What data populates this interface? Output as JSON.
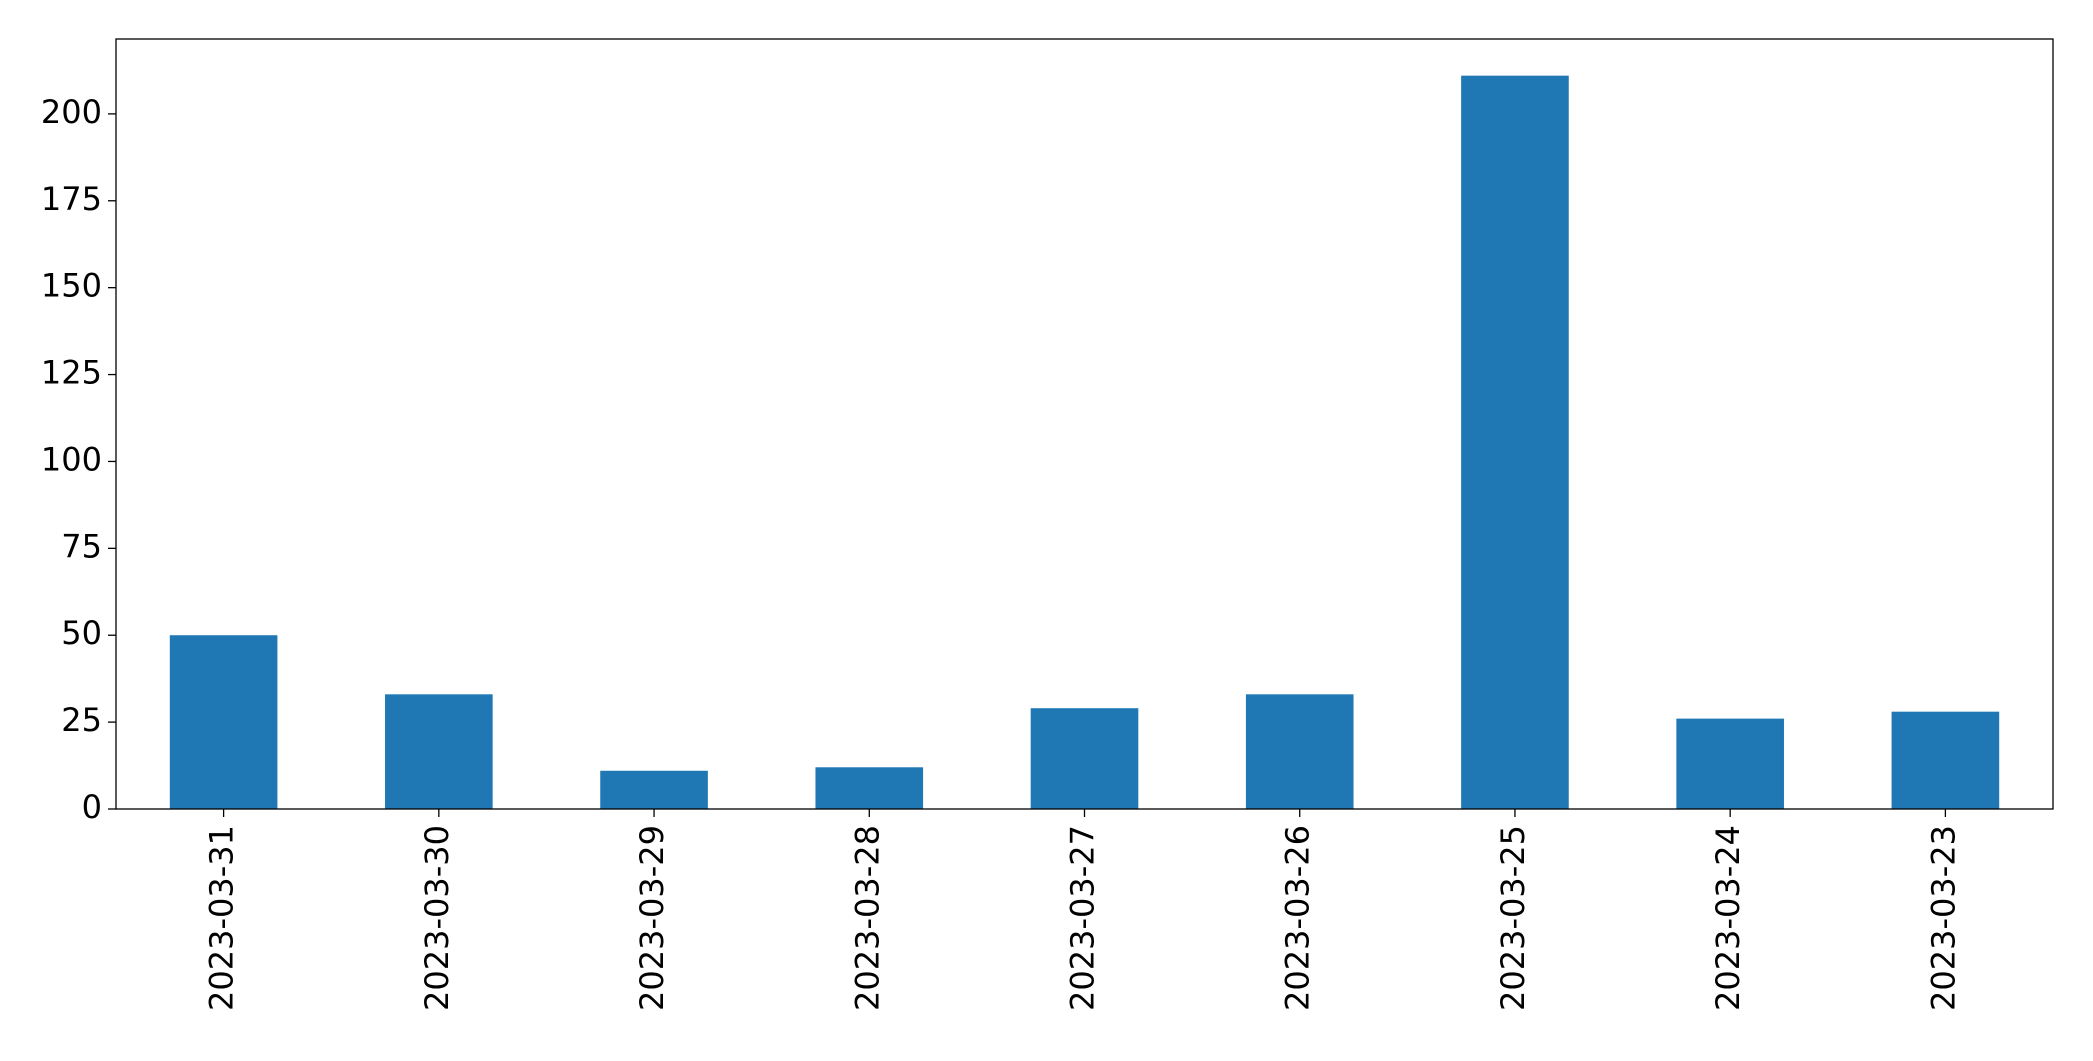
{
  "chart_data": {
    "type": "bar",
    "categories": [
      "2023-03-31",
      "2023-03-30",
      "2023-03-29",
      "2023-03-28",
      "2023-03-27",
      "2023-03-26",
      "2023-03-25",
      "2023-03-24",
      "2023-03-23"
    ],
    "values": [
      50,
      33,
      11,
      12,
      29,
      33,
      211,
      26,
      28
    ],
    "color": "#1f77b4",
    "ylim": [
      0,
      221.55
    ],
    "yticks": [
      0,
      25,
      50,
      75,
      100,
      125,
      150,
      175,
      200
    ],
    "grid": false
  }
}
